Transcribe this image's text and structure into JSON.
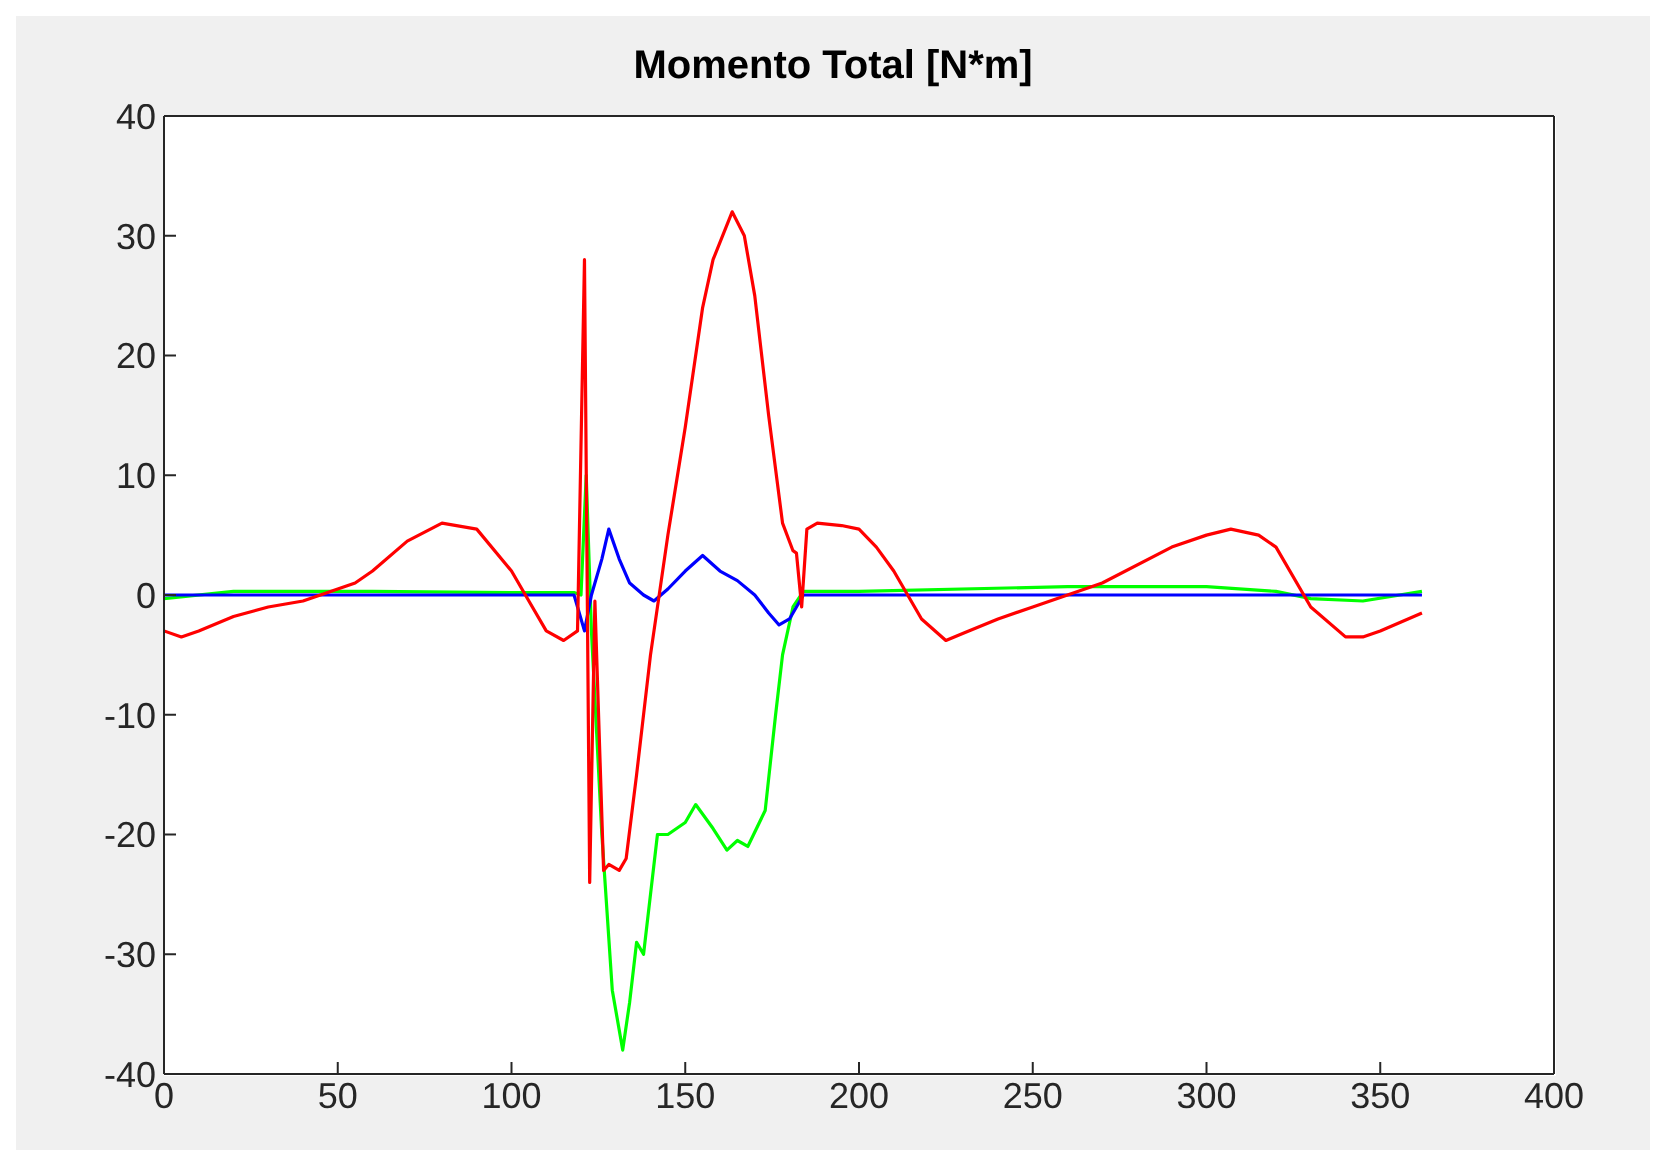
{
  "chart_data": {
    "type": "line",
    "title": "Momento Total [N*m]",
    "xlim": [
      0,
      400
    ],
    "ylim": [
      -40,
      40
    ],
    "xticks": [
      0,
      50,
      100,
      150,
      200,
      250,
      300,
      350,
      400
    ],
    "yticks": [
      -40,
      -30,
      -20,
      -10,
      0,
      10,
      20,
      30,
      40
    ],
    "marker": "none",
    "line_style": "solid",
    "series": [
      {
        "color": "#00ff00",
        "x": [
          0,
          20,
          60,
          100,
          118,
          120,
          121.5,
          123,
          126,
          129,
          132,
          134,
          136,
          138,
          140,
          142,
          145,
          150,
          153,
          158,
          162,
          165,
          168,
          173,
          176,
          178,
          181,
          184,
          200,
          260,
          300,
          320,
          330,
          345,
          362
        ],
        "values": [
          -0.3,
          0.3,
          0.3,
          0.2,
          0.2,
          0,
          10,
          -3,
          -20,
          -33,
          -38,
          -34,
          -29,
          -30,
          -25,
          -20,
          -20,
          -19,
          -17.5,
          -19.5,
          -21.3,
          -20.5,
          -21,
          -18,
          -10,
          -5,
          -1,
          0.3,
          0.3,
          0.7,
          0.7,
          0.3,
          -0.3,
          -0.5,
          0.3
        ]
      },
      {
        "color": "#0000ff",
        "x": [
          0,
          60,
          118,
          121,
          123,
          126,
          128,
          131,
          134,
          138,
          141,
          145,
          150,
          155,
          160,
          165,
          170,
          174,
          177,
          180,
          184,
          200,
          300,
          362
        ],
        "values": [
          0,
          0,
          0,
          -3,
          0,
          3,
          5.5,
          3,
          1,
          0,
          -0.5,
          0.5,
          2,
          3.3,
          2,
          1.2,
          0,
          -1.5,
          -2.5,
          -2,
          0,
          0,
          0,
          0
        ]
      },
      {
        "color": "#ff0000",
        "x": [
          0,
          5,
          10,
          20,
          30,
          40,
          50,
          55,
          60,
          70,
          80,
          90,
          100,
          105,
          110,
          115,
          119,
          121,
          122.5,
          124,
          126.5,
          128,
          131,
          133,
          136,
          140,
          145,
          150,
          155,
          158,
          163.5,
          167,
          170,
          174,
          178,
          181,
          182,
          183.5,
          185,
          188,
          195,
          200,
          205,
          210,
          218,
          225,
          230,
          240,
          250,
          270,
          290,
          300,
          307,
          315,
          320,
          330,
          340,
          345,
          350,
          362
        ],
        "values": [
          -3,
          -3.5,
          -3,
          -1.8,
          -1,
          -0.5,
          0.5,
          1,
          2,
          4.5,
          6,
          5.5,
          2,
          -0.5,
          -3,
          -3.8,
          -3,
          28,
          -24,
          -0.5,
          -23,
          -22.5,
          -23,
          -22,
          -15,
          -5,
          5,
          14,
          24,
          28,
          32,
          30,
          25,
          15,
          6,
          3.7,
          3.5,
          -1,
          5.5,
          6,
          5.8,
          5.5,
          4,
          2,
          -2,
          -3.8,
          -3.2,
          -2,
          -1,
          1,
          4,
          5,
          5.5,
          5,
          4,
          -1,
          -3.5,
          -3.5,
          -3,
          -1.5
        ]
      }
    ]
  }
}
